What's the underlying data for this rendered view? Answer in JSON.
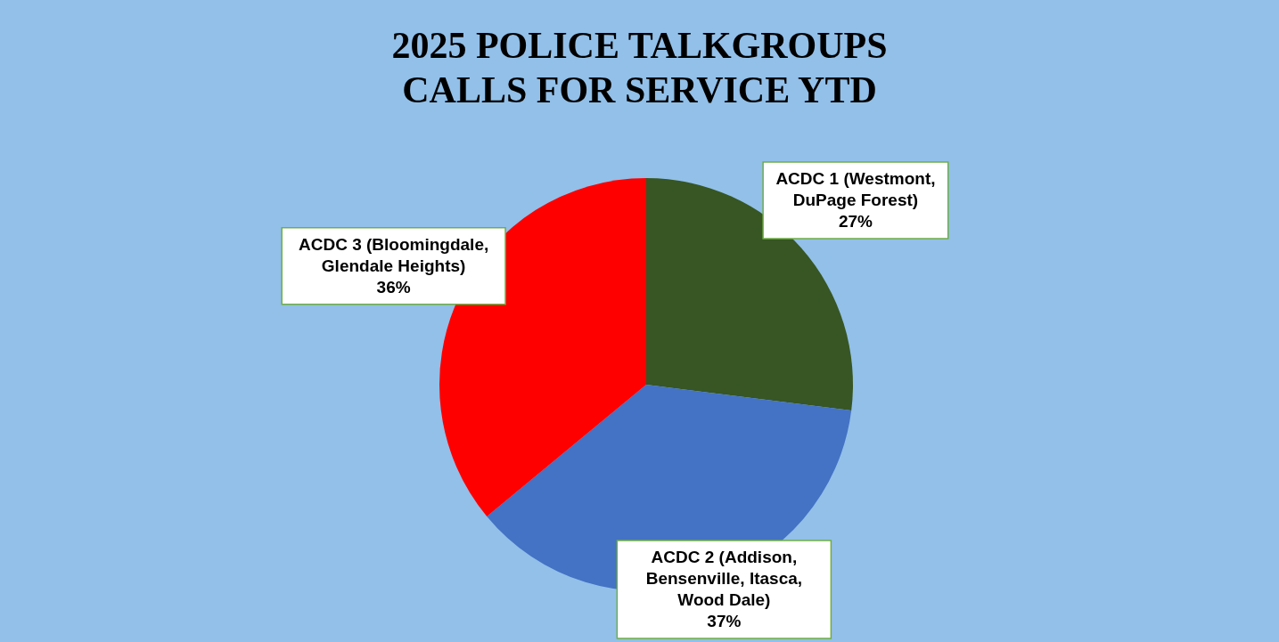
{
  "chart_data": {
    "type": "pie",
    "title": "2025 POLICE TALKGROUPS CALLS FOR SERVICE YTD",
    "categories": [
      "ACDC 1 (Westmont, DuPage Forest)",
      "ACDC 2 (Addison, Bensenville, Itasca, Wood Dale)",
      "ACDC 3 (Bloomingdale, Glendale Heights)"
    ],
    "values": [
      27,
      37,
      36
    ],
    "colors": [
      "#375623",
      "#4472c4",
      "#ff0000"
    ],
    "value_labels": [
      "27%",
      "37%",
      "36%"
    ]
  }
}
